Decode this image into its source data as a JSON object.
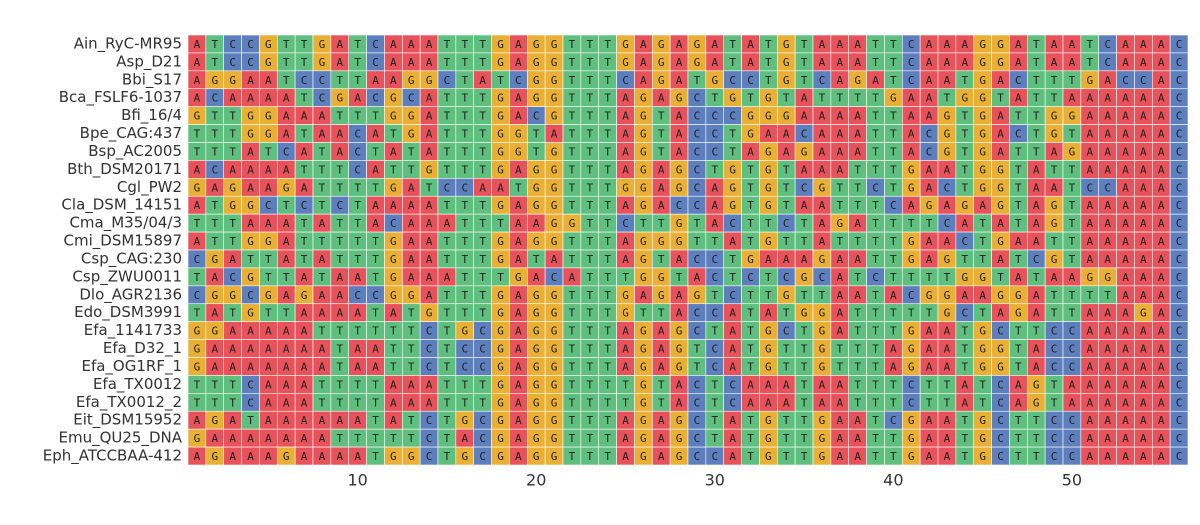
{
  "chart_data": {
    "type": "alignment",
    "colors": {
      "A": "#e8525a",
      "T": "#5fbf7e",
      "C": "#5d7fbd",
      "G": "#e9b035"
    },
    "rows": [
      {
        "name": "Ain_RyC-MR95",
        "sequence": "ATCCGTTGATCAAATTTGAGGTTTGAGAGATATGTAAATTCAAAGGATAATCAAAC"
      },
      {
        "name": "Asp_D21",
        "sequence": "ATCCGTTGATCAAATTTGAGGTTTGAGAGATATGTAAATTCAAAGGATAATCAAAC"
      },
      {
        "name": "Bbi_S17",
        "sequence": "AGGAATCCTTAAGGCTATCGGTTTCAGATGCCTGTCAGATCAATGACTTTGACCAC"
      },
      {
        "name": "Bca_FSLF6-1037",
        "sequence": "ACAAAATCGACGCATTTGAGGTTTAGAGCTGTGTATTTTGAATGGTATTAAAAAAC"
      },
      {
        "name": "Bfi_16/4",
        "sequence": "GTTGGAAATTTGGATTTGACGTTTAGTACCCGGGAAAATTAAGTGATTGGAAAAAC"
      },
      {
        "name": "Bpe_CAG:437",
        "sequence": "TTTGGATAACATGATTTGGTATTTAGTACCTGAACAAATTACGTGACTGTAAAAAC"
      },
      {
        "name": "Bsp_AC2005",
        "sequence": "TTTATCATACTATATTTGGTGTTTAGTACCTAGAGAAATTACGTGATTAGAAAAAC"
      },
      {
        "name": "Bth_DSM20171",
        "sequence": "ACAAAATTTCATTGTTTGAGGTTTAGAGCTGTGTAAATTTGAATGGTATTAAAAAC"
      },
      {
        "name": "Cgl_PW2",
        "sequence": "GAGAAGATTTTGATCCAATGGTTTGGAGCAGTGTCGTTCTGACTGGTAATCCAAAC"
      },
      {
        "name": "Cla_DSM_14151",
        "sequence": "ATGGCTCTCTAAAATTTGAGGTTTAGACCAGTGTAATTTCAGAGAGTAGTAAAAAC"
      },
      {
        "name": "Cma_M35/04/3",
        "sequence": "TTTAAATATTACAAATTTAAGGTTCTTGTACTTCTAGATTTTCATATAGTAAAAAC"
      },
      {
        "name": "Cmi_DSM15897",
        "sequence": "ATTGGATTTTTGAATTTGAGGTTTAGGGTTATGTTATTTTGAACTGAATTAAAAAC"
      },
      {
        "name": "Csp_CAG:230",
        "sequence": "CGATTATATTTGAATTTGATATTTAGTACCTGAAAGAATTGAGTTATCGTAAAAAC"
      },
      {
        "name": "Csp_ZWU0011",
        "sequence": "TACGTTATAATGAAATTTGACATTTGGTACTCTCGCATCTTTTGGTATAAGGAAAC"
      },
      {
        "name": "Dlo_AGR2136",
        "sequence": "CGGCGAGAACCGGATTTGAGGTTTGAGAGTCTTGTTAATACGGAAGGATTTTAAAC"
      },
      {
        "name": "Edo_DSM3991",
        "sequence": "TATGTTAAAATATGTTTGAGGTTTGTTACCATATGGATTTTTGCTAGATTAAAGAC"
      },
      {
        "name": "Efa_1141733",
        "sequence": "GGAAAAATTTTTTCTGCGAGGTTTAGAGCTATGCTGATTTGAATGCTTCCAAAAAC"
      },
      {
        "name": "Efa_D32_1",
        "sequence": "GAAAAAAATAATTCTCCGAGGTTTAGAGTCATGTTGTTTAGAATGGTACCAAAAAC"
      },
      {
        "name": "Efa_OG1RF_1",
        "sequence": "GAAAAAAATAATTCTCCGAGGTTTAGAGTCATGTTGTTTAGAATGGTACCAAAAAC"
      },
      {
        "name": "Efa_TX0012",
        "sequence": "TTTCAAATTTTAAATTTGAGGTTTTGTACTCAAATAATTTCTTATCAGTAAAAAAC"
      },
      {
        "name": "Efa_TX0012_2",
        "sequence": "TTTCAAATTTTAAATTTGAGGTTTTGTACTCAAATAATTTCTTATCAGTAAAAAAC"
      },
      {
        "name": "Eit_DSM15952",
        "sequence": "AGATAAAAAATATCTGCGAGGTTTAGAGCTATGTTGAATCGAATGCTTCCAAAAAC"
      },
      {
        "name": "Emu_QU25_DNA",
        "sequence": "GAAAAAAATTTTTCTACGAGGTTTAGAGCTATGTTGAATTGAATGCTTCCAAAAAC"
      },
      {
        "name": "Eph_ATCCBAA-412",
        "sequence": "AGAAAGAAAATGGCTGCGAGGTTTAGAGCCATGTTGAATTGAATGCTTCCAAAAAC"
      }
    ],
    "xlim": [
      0.5,
      56.5
    ],
    "xticks": [
      10,
      20,
      30,
      40,
      50
    ]
  }
}
